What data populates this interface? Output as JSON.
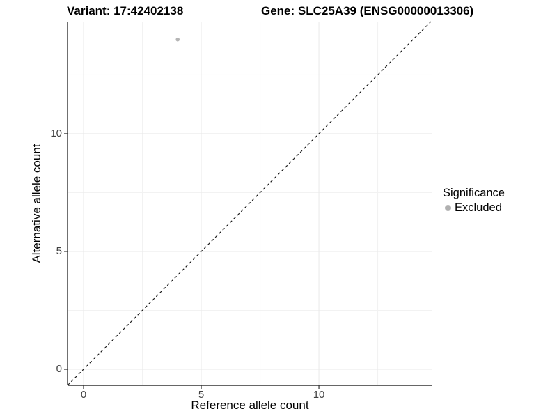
{
  "chart_data": {
    "type": "scatter",
    "title_left": "Variant: 17:42402138",
    "title_right": "Gene: SLC25A39 (ENSG00000013306)",
    "xlabel": "Reference allele count",
    "ylabel": "Alternative allele count",
    "xlim": [
      -0.68,
      14.82
    ],
    "ylim": [
      -0.68,
      14.76
    ],
    "x_major_ticks": [
      0,
      5,
      10
    ],
    "y_major_ticks": [
      0,
      5,
      10
    ],
    "x_minor_ticks": [
      2.5,
      7.5,
      12.5
    ],
    "y_minor_ticks": [
      2.5,
      7.5,
      12.5
    ],
    "grid": true,
    "points": [
      {
        "x": 4,
        "y": 14,
        "series": "Excluded"
      }
    ],
    "identity_line": {
      "slope": 1,
      "intercept": 0,
      "style": "dashed",
      "color": "#1a1a1a"
    },
    "legend": {
      "title": "Significance",
      "position": "right",
      "items": [
        {
          "label": "Excluded",
          "color": "#b0b0b0",
          "marker": "circle"
        }
      ]
    }
  },
  "colors": {
    "background": "#ffffff",
    "grid_major": "#e9e9e9",
    "grid_minor": "#f2f2f2",
    "axis_line": "#333333",
    "tick_mark": "#333333",
    "tick_label": "#404040",
    "title_text": "#000000",
    "point": "#b5b5b5",
    "legend_marker": "#adadad"
  }
}
